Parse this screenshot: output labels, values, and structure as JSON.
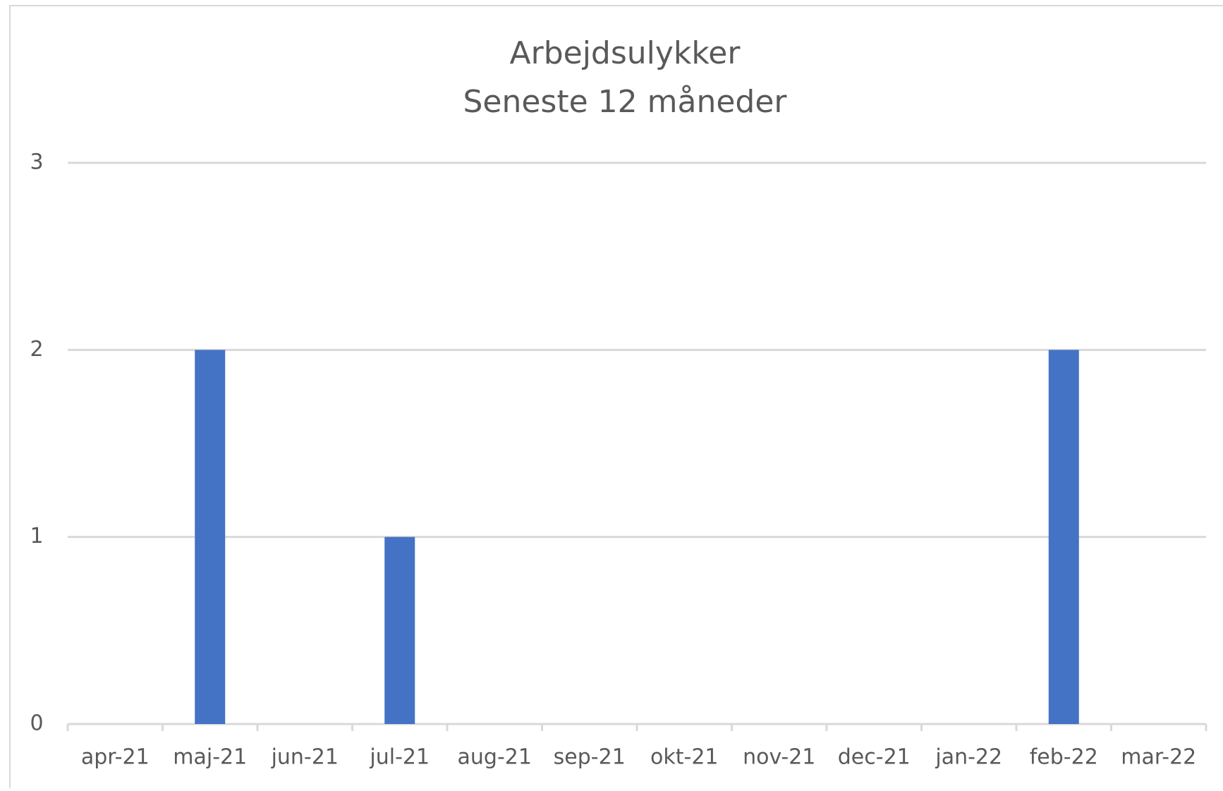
{
  "chart_data": {
    "type": "bar",
    "title": "Arbejdsulykker",
    "subtitle": "Seneste 12 måneder",
    "categories": [
      "apr-21",
      "maj-21",
      "jun-21",
      "jul-21",
      "aug-21",
      "sep-21",
      "okt-21",
      "nov-21",
      "dec-21",
      "jan-22",
      "feb-22",
      "mar-22"
    ],
    "values": [
      0,
      2,
      0,
      1,
      0,
      0,
      0,
      0,
      0,
      0,
      2,
      0
    ],
    "color": "#4472c4",
    "ylim": [
      0,
      3
    ],
    "yticks": [
      0,
      1,
      2,
      3
    ],
    "grid": true
  }
}
